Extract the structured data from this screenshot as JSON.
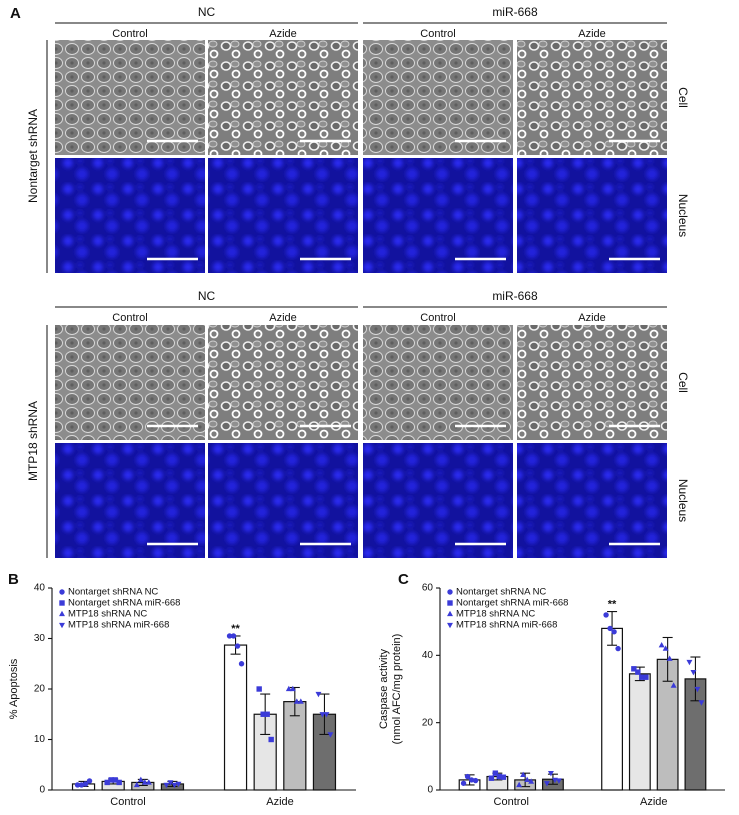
{
  "panel_a": {
    "label": "A",
    "rows": [
      {
        "shrna": "Nontarget shRNA",
        "groups": [
          "NC",
          "miR-668"
        ],
        "conditions": [
          "Control",
          "Azide",
          "Control",
          "Azide"
        ],
        "channels": [
          "Cell",
          "Nucleus"
        ]
      },
      {
        "shrna": "MTP18 shRNA",
        "groups": [
          "NC",
          "miR-668"
        ],
        "conditions": [
          "Control",
          "Azide",
          "Control",
          "Azide"
        ],
        "channels": [
          "Cell",
          "Nucleus"
        ]
      }
    ]
  },
  "chart_data": [
    {
      "type": "bar",
      "label": "B",
      "ylabel": [
        "% Apoptosis"
      ],
      "categories": [
        "Control",
        "Azide"
      ],
      "ylim": [
        0,
        40
      ],
      "yticks": [
        0,
        10,
        20,
        30,
        40
      ],
      "series": [
        {
          "name": "Nontarget shRNA NC",
          "color": "#ffffff",
          "marker": "circle",
          "marker_color": "#3b3bd8",
          "values": [
            1.2,
            28.7
          ],
          "errors": [
            0.5,
            1.8
          ],
          "points": [
            [
              1.0,
              1.0,
              1.2,
              1.8
            ],
            [
              30.5,
              30.5,
              28.5,
              25.0
            ]
          ]
        },
        {
          "name": "Nontarget shRNA miR-668",
          "color": "#e6e6e6",
          "marker": "square",
          "marker_color": "#3b3bd8",
          "values": [
            1.7,
            15.0
          ],
          "errors": [
            0.5,
            4.0
          ],
          "points": [
            [
              1.5,
              2.0,
              2.0,
              1.5
            ],
            [
              20.0,
              15.0,
              15.0,
              10.0
            ]
          ]
        },
        {
          "name": "MTP18 shRNA NC",
          "color": "#bdbdbd",
          "marker": "triangle",
          "marker_color": "#3b3bd8",
          "values": [
            1.5,
            17.5
          ],
          "errors": [
            0.6,
            2.8
          ],
          "points": [
            [
              1.0,
              2.0,
              1.5,
              1.5
            ],
            [
              20.0,
              20.0,
              17.5,
              17.5
            ]
          ]
        },
        {
          "name": "MTP18 shRNA miR-668",
          "color": "#6e6e6e",
          "marker": "triangle-down",
          "marker_color": "#3b3bd8",
          "values": [
            1.2,
            15.0
          ],
          "errors": [
            0.5,
            4.0
          ],
          "points": [
            [
              1.0,
              1.5,
              1.0,
              1.2
            ],
            [
              19.0,
              15.0,
              15.0,
              11.0
            ]
          ]
        }
      ],
      "annotations": [
        {
          "text": "**",
          "series": "Nontarget shRNA NC",
          "category": "Azide"
        }
      ]
    },
    {
      "type": "bar",
      "label": "C",
      "ylabel": [
        "Caspase activity",
        "(nmol AFC/mg protein)"
      ],
      "categories": [
        "Control",
        "Azide"
      ],
      "ylim": [
        0,
        60
      ],
      "yticks": [
        0,
        20,
        40,
        60
      ],
      "series": [
        {
          "name": "Nontarget shRNA NC",
          "color": "#ffffff",
          "marker": "circle",
          "marker_color": "#3b3bd8",
          "values": [
            3.0,
            48.0
          ],
          "errors": [
            1.5,
            5.0
          ],
          "points": [
            [
              2.0,
              4.0,
              3.0,
              2.8
            ],
            [
              52.0,
              48.0,
              47.0,
              42.0
            ]
          ]
        },
        {
          "name": "Nontarget shRNA miR-668",
          "color": "#e6e6e6",
          "marker": "square",
          "marker_color": "#3b3bd8",
          "values": [
            4.0,
            34.5
          ],
          "errors": [
            1.0,
            2.0
          ],
          "points": [
            [
              3.5,
              5.0,
              4.0,
              3.8
            ],
            [
              36.0,
              35.0,
              33.5,
              33.5
            ]
          ]
        },
        {
          "name": "MTP18 shRNA NC",
          "color": "#bdbdbd",
          "marker": "triangle",
          "marker_color": "#3b3bd8",
          "values": [
            3.0,
            38.8
          ],
          "errors": [
            2.0,
            6.5
          ],
          "points": [
            [
              1.5,
              4.5,
              3.0,
              2.5
            ],
            [
              43.0,
              42.0,
              39.0,
              31.0
            ]
          ]
        },
        {
          "name": "MTP18 shRNA miR-668",
          "color": "#6e6e6e",
          "marker": "triangle-down",
          "marker_color": "#3b3bd8",
          "values": [
            3.2,
            33.0
          ],
          "errors": [
            1.5,
            6.5
          ],
          "points": [
            [
              2.0,
              5.0,
              3.0,
              2.8
            ],
            [
              38.0,
              35.0,
              30.0,
              26.0
            ]
          ]
        }
      ],
      "annotations": [
        {
          "text": "**",
          "series": "Nontarget shRNA NC",
          "category": "Azide"
        }
      ]
    }
  ]
}
